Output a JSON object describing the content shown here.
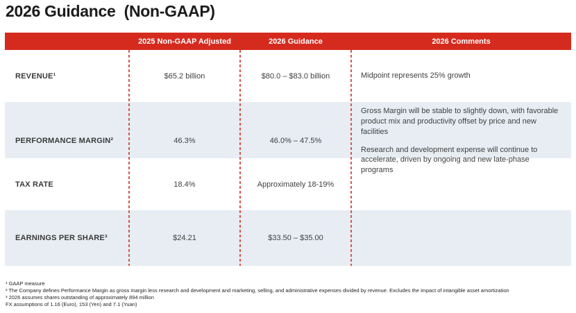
{
  "title": "2026 Guidance  (Non-GAAP)",
  "colors": {
    "header_bg": "#D52B1E",
    "row_alt_bg": "#E7EDF3",
    "divider_dash": "#D9564C",
    "header_text": "#FFFFFF"
  },
  "table": {
    "headers": {
      "col_2025": "2025 Non-GAAP Adjusted",
      "col_2026": "2026 Guidance",
      "col_comments": "2026 Comments"
    },
    "rows": [
      {
        "label": "REVENUE¹",
        "adjusted_2025": "$65.2 billion",
        "guidance_2026": "$80.0 – $83.0 billion",
        "comments": [
          "Midpoint represents 25% growth"
        ]
      },
      {
        "label": "PERFORMANCE MARGIN²",
        "adjusted_2025": "46.3%",
        "guidance_2026": "46.0% – 47.5%",
        "comments": [
          "Gross Margin will be stable to slightly down, with favorable product mix and productivity offset by price and new facilities",
          "Research and development expense will continue to accelerate, driven by ongoing and new late-phase programs"
        ]
      },
      {
        "label": "TAX RATE",
        "adjusted_2025": "18.4%",
        "guidance_2026": "Approximately 18-19%",
        "comments": []
      },
      {
        "label": "EARNINGS PER SHARE³",
        "adjusted_2025": "$24.21",
        "guidance_2026": "$33.50 – $35.00",
        "comments": []
      }
    ]
  },
  "footnotes": [
    "¹ GAAP measure",
    "² The Company defines Performance Margin as gross margin less research and development and marketing, selling, and administrative expenses divided by revenue. Excludes the impact of intangible asset amortization",
    "³ 2026 assumes shares outstanding of approximately 894 million",
    "FX assumptions of 1.16 (Euro), 153 (Yen) and 7.1 (Yuan)"
  ]
}
